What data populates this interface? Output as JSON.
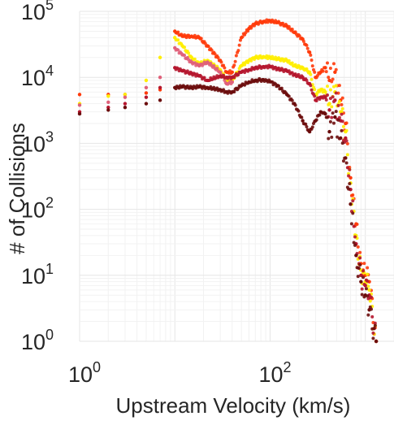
{
  "chart_data": {
    "type": "scatter",
    "title": "",
    "xlabel": "Upstream Velocity (km/s)",
    "ylabel": "# of Collisions",
    "xscale": "log",
    "yscale": "log",
    "xlim": [
      1,
      2000
    ],
    "ylim": [
      1,
      100000
    ],
    "grid": true,
    "legend": "none",
    "x_ticks": [
      {
        "value": 1,
        "base": "10",
        "exp": "0"
      },
      {
        "value": 100,
        "base": "10",
        "exp": "2"
      }
    ],
    "y_ticks": [
      {
        "value": 1,
        "base": "10",
        "exp": "0"
      },
      {
        "value": 10,
        "base": "10",
        "exp": "1"
      },
      {
        "value": 100,
        "base": "10",
        "exp": "2"
      },
      {
        "value": 1000,
        "base": "10",
        "exp": "3"
      },
      {
        "value": 10000,
        "base": "10",
        "exp": "4"
      },
      {
        "value": 100000,
        "base": "10",
        "exp": "5"
      }
    ],
    "series": [
      {
        "color": "#ff3a0a",
        "points": [
          [
            1,
            5500
          ],
          [
            2,
            5500
          ],
          [
            3,
            5500
          ],
          [
            5,
            5800
          ],
          [
            7,
            6500
          ],
          [
            10,
            50000
          ],
          [
            12,
            42000
          ],
          [
            15,
            42000
          ],
          [
            18,
            40000
          ],
          [
            22,
            30000
          ],
          [
            30,
            18000
          ],
          [
            35,
            12000
          ],
          [
            40,
            12000
          ],
          [
            50,
            40000
          ],
          [
            60,
            55000
          ],
          [
            70,
            65000
          ],
          [
            85,
            70000
          ],
          [
            100,
            72000
          ],
          [
            120,
            68000
          ],
          [
            150,
            60000
          ],
          [
            180,
            48000
          ],
          [
            220,
            38000
          ],
          [
            260,
            24000
          ],
          [
            300,
            10000
          ],
          [
            340,
            12000
          ],
          [
            380,
            14000
          ],
          [
            420,
            9000
          ],
          [
            480,
            12000
          ],
          [
            550,
            4500
          ],
          [
            620,
            2000
          ],
          [
            700,
            300
          ],
          [
            800,
            60
          ],
          [
            900,
            15
          ],
          [
            1000,
            10
          ],
          [
            1100,
            8
          ],
          [
            1300,
            1
          ]
        ]
      },
      {
        "color": "#ffee00",
        "points": [
          [
            1,
            4000
          ],
          [
            2,
            5200
          ],
          [
            3,
            5500
          ],
          [
            5,
            9000
          ],
          [
            7,
            20000
          ],
          [
            10,
            40000
          ],
          [
            12,
            30000
          ],
          [
            15,
            20000
          ],
          [
            18,
            16000
          ],
          [
            22,
            18000
          ],
          [
            30,
            13000
          ],
          [
            35,
            9000
          ],
          [
            40,
            9000
          ],
          [
            50,
            15000
          ],
          [
            60,
            18000
          ],
          [
            70,
            20000
          ],
          [
            85,
            20500
          ],
          [
            100,
            20000
          ],
          [
            120,
            19000
          ],
          [
            150,
            18000
          ],
          [
            180,
            15000
          ],
          [
            220,
            14000
          ],
          [
            260,
            12000
          ],
          [
            300,
            5500
          ],
          [
            340,
            6500
          ],
          [
            380,
            6000
          ],
          [
            420,
            4000
          ],
          [
            480,
            6000
          ],
          [
            550,
            3000
          ],
          [
            620,
            1500
          ],
          [
            700,
            250
          ],
          [
            800,
            40
          ],
          [
            900,
            12
          ],
          [
            1000,
            8
          ],
          [
            1100,
            6
          ],
          [
            1300,
            1
          ]
        ]
      },
      {
        "color": "#e0607a",
        "points": [
          [
            1,
            3800
          ],
          [
            2,
            4200
          ],
          [
            3,
            5000
          ],
          [
            5,
            7000
          ],
          [
            7,
            10000
          ],
          [
            10,
            28000
          ],
          [
            12,
            22000
          ],
          [
            15,
            17000
          ],
          [
            18,
            15000
          ],
          [
            22,
            17000
          ],
          [
            30,
            12000
          ],
          [
            35,
            8000
          ],
          [
            40,
            8500
          ]
        ]
      },
      {
        "color": "#b5162e",
        "points": [
          [
            1,
            3000
          ],
          [
            2,
            3500
          ],
          [
            3,
            4000
          ],
          [
            5,
            5000
          ],
          [
            7,
            7000
          ],
          [
            10,
            14000
          ],
          [
            12,
            12500
          ],
          [
            15,
            11500
          ],
          [
            18,
            10500
          ],
          [
            22,
            9000
          ],
          [
            30,
            10500
          ],
          [
            35,
            10000
          ],
          [
            40,
            10000
          ],
          [
            50,
            12000
          ],
          [
            60,
            13000
          ],
          [
            70,
            14000
          ],
          [
            85,
            14500
          ],
          [
            100,
            14500
          ],
          [
            120,
            13500
          ],
          [
            150,
            12500
          ],
          [
            180,
            11000
          ],
          [
            220,
            10000
          ],
          [
            260,
            8000
          ],
          [
            300,
            4500
          ],
          [
            340,
            5000
          ],
          [
            380,
            5000
          ],
          [
            420,
            3200
          ],
          [
            480,
            4500
          ],
          [
            550,
            2200
          ],
          [
            620,
            1200
          ],
          [
            700,
            200
          ],
          [
            800,
            30
          ],
          [
            900,
            10
          ],
          [
            1000,
            7
          ],
          [
            1100,
            5
          ],
          [
            1300,
            1
          ]
        ]
      },
      {
        "color": "#6b0c0c",
        "points": [
          [
            1,
            2800
          ],
          [
            2,
            3200
          ],
          [
            3,
            3500
          ],
          [
            5,
            4000
          ],
          [
            7,
            4500
          ],
          [
            10,
            7000
          ],
          [
            12,
            7200
          ],
          [
            15,
            7000
          ],
          [
            18,
            7200
          ],
          [
            22,
            7000
          ],
          [
            30,
            6500
          ],
          [
            35,
            6000
          ],
          [
            40,
            6000
          ],
          [
            50,
            7500
          ],
          [
            60,
            8500
          ],
          [
            70,
            9000
          ],
          [
            85,
            9200
          ],
          [
            100,
            8600
          ],
          [
            120,
            7500
          ],
          [
            150,
            5500
          ],
          [
            180,
            4000
          ],
          [
            220,
            2200
          ],
          [
            260,
            1500
          ],
          [
            300,
            2200
          ],
          [
            340,
            3000
          ],
          [
            380,
            2800
          ],
          [
            420,
            1500
          ],
          [
            480,
            2500
          ],
          [
            550,
            1200
          ],
          [
            620,
            600
          ],
          [
            700,
            120
          ],
          [
            800,
            20
          ],
          [
            900,
            8
          ],
          [
            1000,
            5
          ],
          [
            1100,
            3
          ],
          [
            1300,
            1
          ]
        ]
      }
    ]
  }
}
